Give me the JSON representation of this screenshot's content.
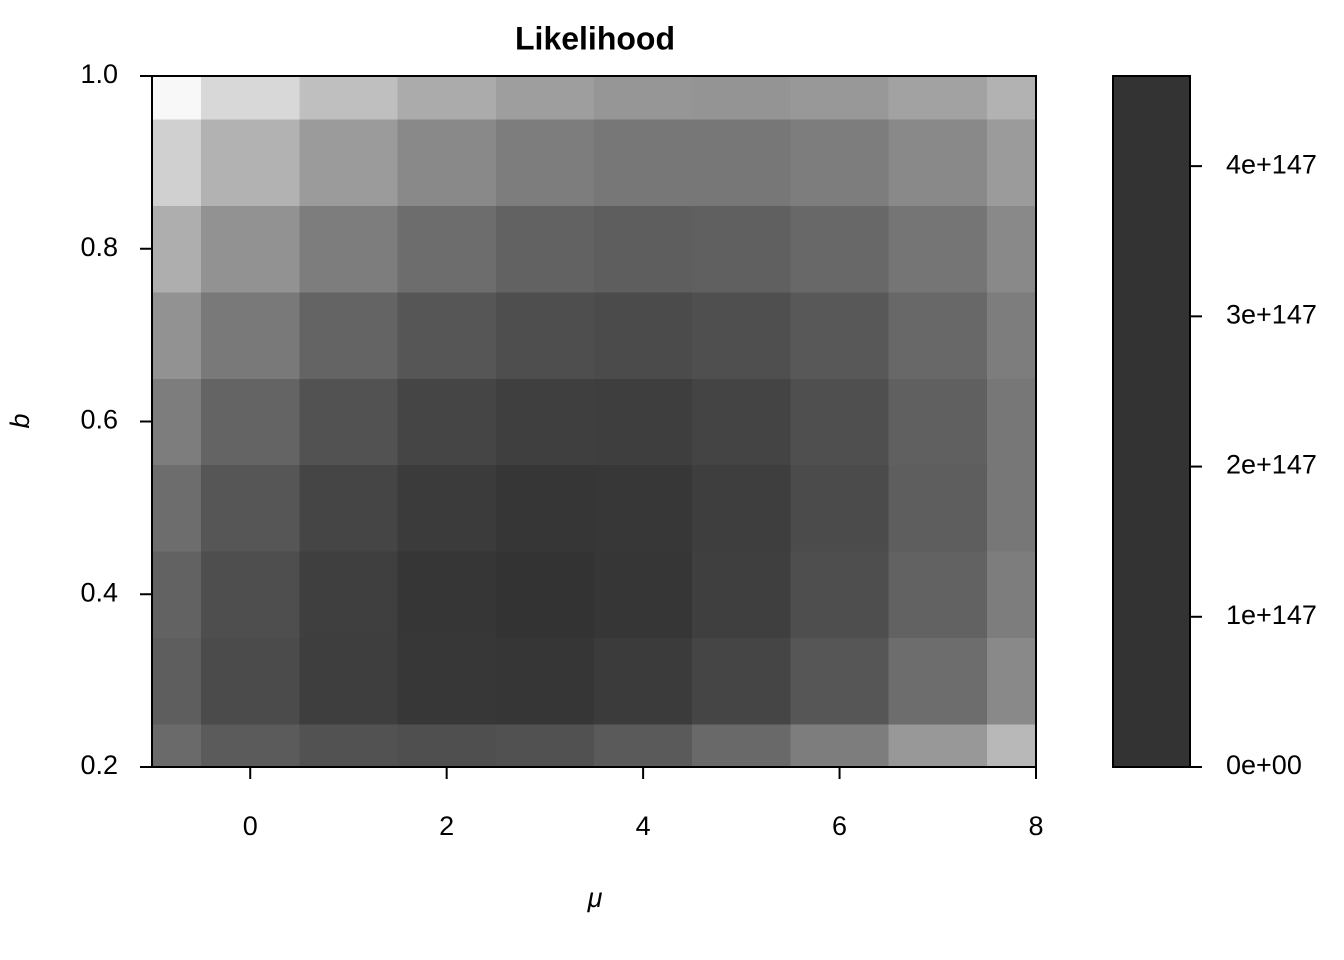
{
  "chart_data": {
    "type": "filled-contour",
    "title": "Likelihood",
    "x_label": "μ",
    "y_label": "b",
    "x": [
      -1,
      0,
      1,
      2,
      3,
      4,
      5,
      6,
      7,
      8
    ],
    "y": [
      0.2,
      0.3,
      0.4,
      0.5,
      0.6,
      0.7,
      0.8,
      0.9,
      1.0
    ],
    "z": [
      [
        4.4e+145,
        1.6e+146,
        3.4e+146,
        4.5e+146,
        3.6e+146,
        1.7e+146,
        5e+145,
        8.9e+144,
        9.5e+143,
        6.2e+142
      ],
      [
        1.2e+146,
        5.9e+146,
        1.8e+147,
        3.2e+147,
        3.6e+147,
        2.4e+147,
        9.8e+146,
        2.4e+146,
        3.6e+145,
        3.3e+144
      ],
      [
        8.4e+145,
        4.9e+146,
        1.7e+147,
        3.6e+147,
        4.6e+147,
        3.6e+147,
        1.7e+147,
        4.9e+146,
        8.4e+145,
        8.9e+144
      ],
      [
        3.6e+145,
        2.4e+146,
        9.8e+146,
        2.4e+147,
        3.6e+147,
        3.2e+147,
        1.8e+147,
        5.9e+146,
        1.2e+146,
        1.5e+145
      ],
      [
        9.3e+144,
        7.3e+145,
        3.4e+146,
        9.8e+146,
        1.7e+147,
        1.8e+147,
        1.1e+147,
        4.4e+146,
        1e+146,
        1.5e+145
      ],
      [
        1.5e+144,
        1.3e+145,
        7.3e+145,
        2.4e+146,
        4.9e+146,
        5.9e+146,
        4.4e+146,
        2e+146,
        5.4e+145,
        8.9e+144
      ],
      [
        1.4e+143,
        1.5e+144,
        9.3e+144,
        3.6e+145,
        8.4e+145,
        1.2e+146,
        1e+146,
        5.4e+145,
        1.7e+145,
        3.3e+144
      ],
      [
        8.1e+141,
        9.9e+142,
        7.3e+143,
        3.3e+144,
        8.9e+144,
        1.5e+145,
        1.5e+145,
        8.9e+144,
        3.3e+144,
        7.3e+143
      ],
      [
        2.8e+140,
        4e+141,
        3.5e+142,
        1.8e+143,
        5.7e+143,
        1.1e+144,
        1.3e+144,
        8.9e+143,
        3.8e+143,
        9.9e+142
      ]
    ],
    "xlim": [
      -1,
      8
    ],
    "xticks": [
      0,
      2,
      4,
      6,
      8
    ],
    "ylim": [
      0.2,
      1.0
    ],
    "yticks": [
      0.2,
      0.4,
      0.6,
      0.8,
      {
        "value": 1.0,
        "label": "1.0"
      }
    ],
    "zlim": [
      0,
      4.6e+147
    ],
    "zticks": [
      {
        "value": 0,
        "label": "0e+00"
      },
      {
        "value": 1e+147,
        "label": "1e+147"
      },
      {
        "value": 2e+147,
        "label": "2e+147"
      },
      {
        "value": 3e+147,
        "label": "3e+147"
      },
      {
        "value": 4e+147,
        "label": "4e+147"
      }
    ],
    "key_color": "#333333"
  }
}
